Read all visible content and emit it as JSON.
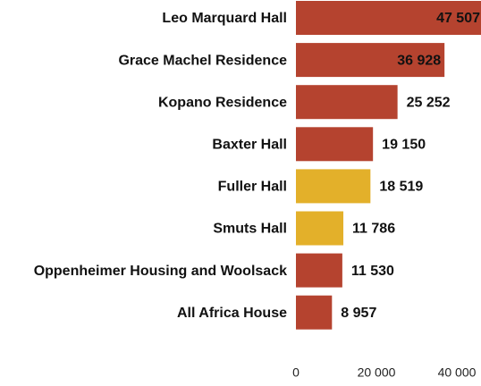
{
  "chart_data": {
    "type": "bar",
    "orientation": "horizontal",
    "categories": [
      "Leo Marquard Hall",
      "Grace Machel Residence",
      "Kopano Residence",
      "Baxter Hall",
      "Fuller Hall",
      "Smuts Hall",
      "Oppenheimer Housing and Woolsack",
      "All Africa House"
    ],
    "values": [
      47507,
      36928,
      25252,
      19150,
      18519,
      11786,
      11530,
      8957
    ],
    "value_labels": [
      "47 507",
      "36 928",
      "25 252",
      "19 150",
      "18 519",
      "11 786",
      "11 530",
      "8 957"
    ],
    "colors": [
      "#b5432f",
      "#b5432f",
      "#b5432f",
      "#b5432f",
      "#e3b02a",
      "#e3b02a",
      "#b5432f",
      "#b5432f"
    ],
    "xlim": [
      0,
      46000
    ],
    "xticks": [
      0,
      {
        "value": 20000,
        "label": "20 000"
      },
      {
        "value": 40000,
        "label": "40 000"
      }
    ],
    "grid": false
  }
}
